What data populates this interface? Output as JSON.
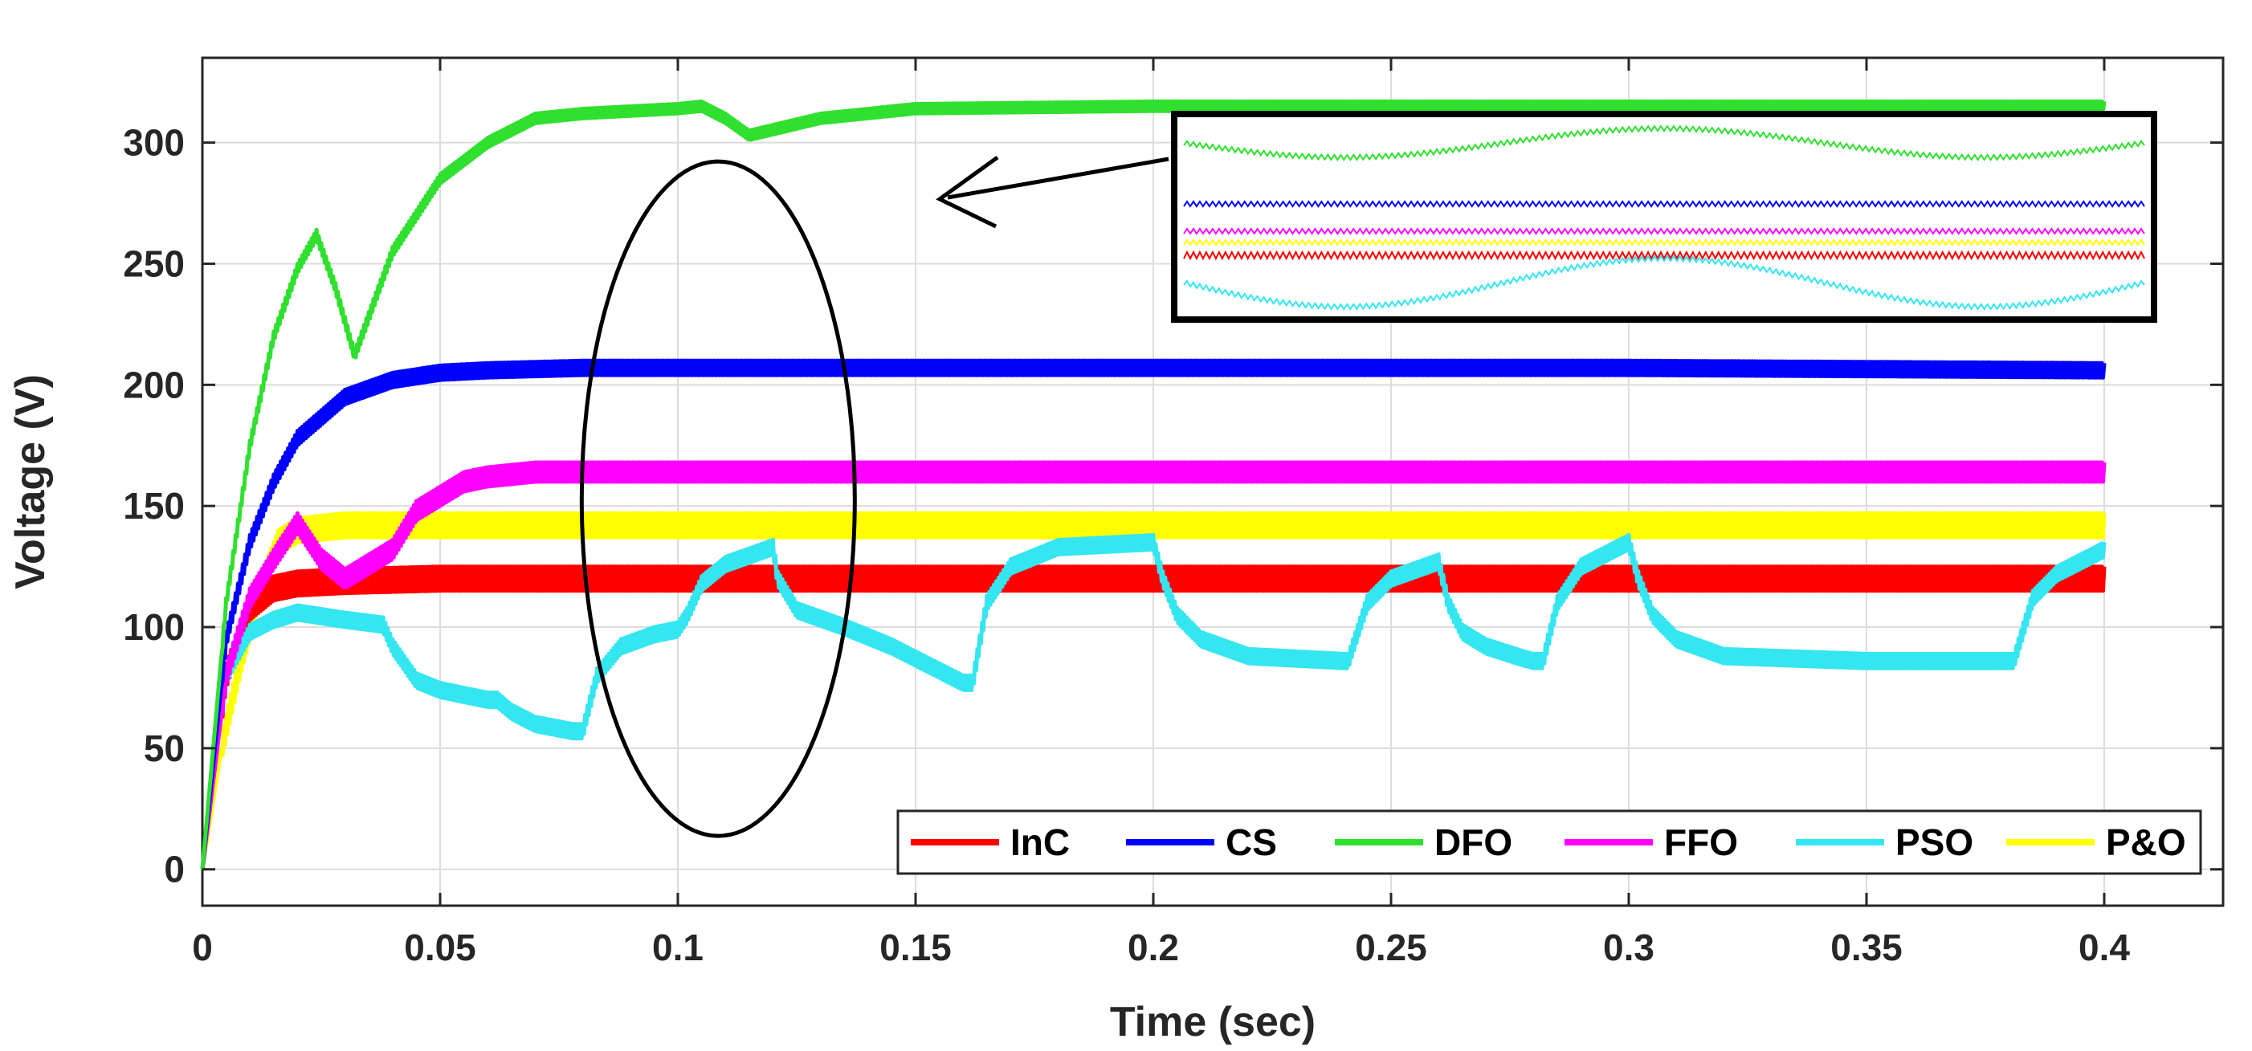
{
  "chart_data": {
    "type": "line",
    "title": "",
    "xlabel": "Time (sec)",
    "ylabel": "Voltage (V)",
    "xlim": [
      0,
      0.425
    ],
    "ylim": [
      -15,
      335
    ],
    "grid": true,
    "xticks": [
      0,
      0.05,
      0.1,
      0.15,
      0.2,
      0.25,
      0.3,
      0.35,
      0.4
    ],
    "xtick_labels": [
      "0",
      "0.05",
      "0.1",
      "0.15",
      "0.2",
      "0.25",
      "0.3",
      "0.35",
      "0.4"
    ],
    "yticks": [
      0,
      50,
      100,
      150,
      200,
      250,
      300
    ],
    "ytick_labels": [
      "0",
      "50",
      "100",
      "150",
      "200",
      "250",
      "300"
    ],
    "legend_position": "bottom-right",
    "series": [
      {
        "name": "InC",
        "color": "#ff0000",
        "ripple": 5,
        "x": [
          0,
          0.005,
          0.01,
          0.015,
          0.02,
          0.03,
          0.05,
          0.1,
          0.2,
          0.3,
          0.4
        ],
        "y": [
          0,
          80,
          108,
          116,
          118,
          119,
          120,
          120,
          120,
          120,
          120
        ]
      },
      {
        "name": "CS",
        "color": "#0000ff",
        "ripple": 3,
        "x": [
          0,
          0.005,
          0.01,
          0.015,
          0.02,
          0.03,
          0.04,
          0.05,
          0.06,
          0.08,
          0.1,
          0.2,
          0.3,
          0.4
        ],
        "y": [
          0,
          95,
          135,
          160,
          178,
          195,
          202,
          205,
          206,
          207,
          207,
          207,
          207,
          206
        ]
      },
      {
        "name": "DFO",
        "color": "#2fe02f",
        "ripple": 2,
        "x": [
          0,
          0.005,
          0.01,
          0.015,
          0.02,
          0.024,
          0.028,
          0.032,
          0.04,
          0.05,
          0.06,
          0.07,
          0.08,
          0.09,
          0.1,
          0.105,
          0.11,
          0.115,
          0.13,
          0.15,
          0.2,
          0.3,
          0.4
        ],
        "y": [
          0,
          110,
          175,
          220,
          248,
          262,
          240,
          212,
          255,
          285,
          300,
          310,
          312,
          313,
          314,
          315,
          310,
          303,
          310,
          314,
          315,
          315,
          315
        ]
      },
      {
        "name": "FFO",
        "color": "#ff00ff",
        "ripple": 4,
        "x": [
          0,
          0.005,
          0.01,
          0.015,
          0.02,
          0.025,
          0.03,
          0.035,
          0.04,
          0.045,
          0.05,
          0.055,
          0.06,
          0.07,
          0.08,
          0.1,
          0.2,
          0.3,
          0.4
        ],
        "y": [
          0,
          80,
          112,
          128,
          143,
          128,
          120,
          126,
          132,
          148,
          154,
          160,
          162,
          164,
          164,
          164,
          164,
          164,
          164
        ]
      },
      {
        "name": "PSO",
        "color": "#33e6f0",
        "ripple": 3,
        "x": [
          0,
          0.005,
          0.01,
          0.015,
          0.02,
          0.03,
          0.038,
          0.04,
          0.045,
          0.05,
          0.06,
          0.062,
          0.065,
          0.07,
          0.078,
          0.08,
          0.083,
          0.088,
          0.095,
          0.1,
          0.102,
          0.105,
          0.11,
          0.12,
          0.121,
          0.125,
          0.135,
          0.145,
          0.155,
          0.16,
          0.162,
          0.165,
          0.17,
          0.18,
          0.2,
          0.202,
          0.205,
          0.21,
          0.22,
          0.24,
          0.241,
          0.245,
          0.25,
          0.26,
          0.262,
          0.265,
          0.27,
          0.278,
          0.28,
          0.282,
          0.285,
          0.29,
          0.3,
          0.302,
          0.305,
          0.31,
          0.32,
          0.35,
          0.38,
          0.381,
          0.385,
          0.39,
          0.4
        ],
        "y": [
          0,
          80,
          98,
          103,
          106,
          103,
          101,
          92,
          78,
          74,
          70,
          70,
          65,
          60,
          57,
          57,
          80,
          92,
          97,
          99,
          105,
          118,
          126,
          133,
          120,
          107,
          100,
          92,
          82,
          77,
          77,
          110,
          125,
          133,
          135,
          120,
          105,
          95,
          88,
          86,
          86,
          110,
          120,
          127,
          110,
          98,
          92,
          87,
          86,
          86,
          110,
          125,
          135,
          120,
          105,
          95,
          88,
          86,
          86,
          86,
          112,
          122,
          132
        ]
      },
      {
        "name": "P&O",
        "color": "#ffff00",
        "ripple": 5,
        "x": [
          0,
          0.004,
          0.008,
          0.012,
          0.016,
          0.02,
          0.03,
          0.05,
          0.1,
          0.2,
          0.3,
          0.4
        ],
        "y": [
          0,
          50,
          85,
          115,
          135,
          140,
          142,
          142,
          142,
          142,
          142,
          142
        ]
      }
    ],
    "annotations": [
      {
        "type": "ellipse",
        "text": "",
        "note": "highlighted region around t = 0.1 s"
      },
      {
        "type": "inset_box",
        "text": "",
        "note": "zoomed view of steady-state ripple of all six series"
      },
      {
        "type": "arrow",
        "text": "",
        "note": "from inset to ellipse"
      }
    ]
  }
}
